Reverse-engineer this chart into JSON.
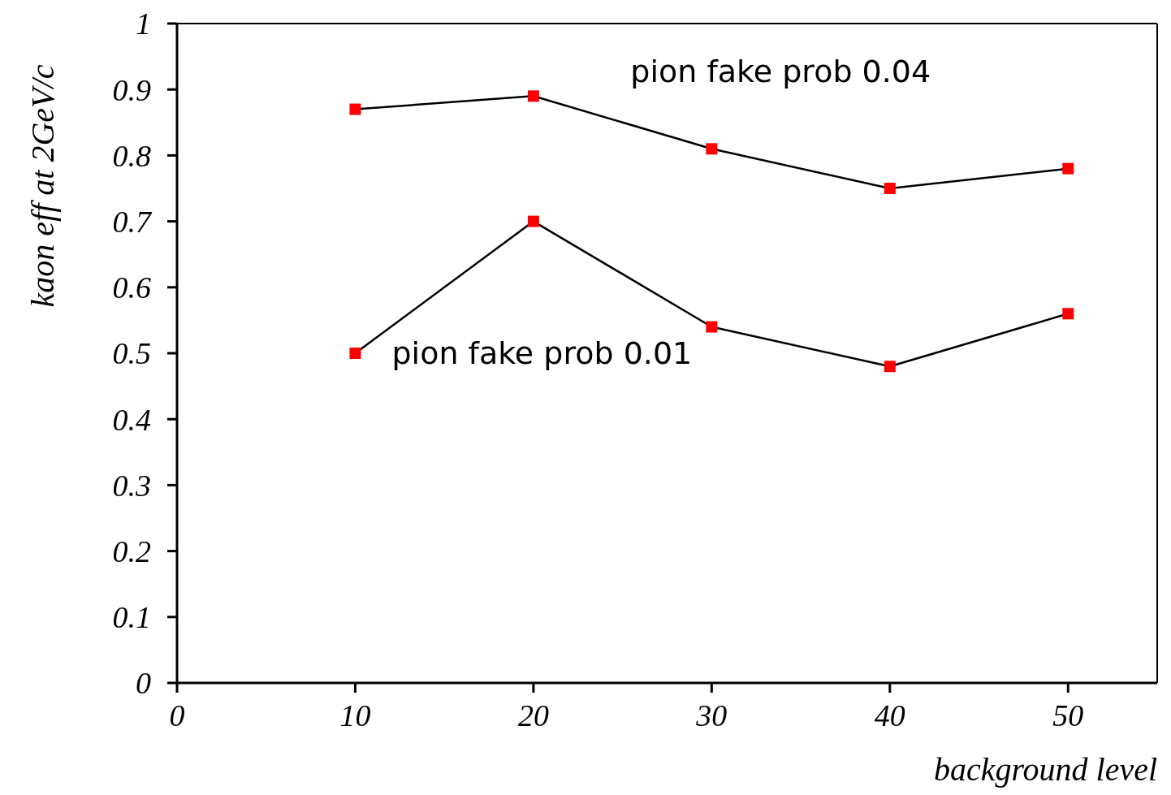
{
  "chart_data": {
    "type": "line",
    "xlabel": "background level",
    "ylabel": "kaon eff at 2GeV/c",
    "x": [
      10,
      20,
      30,
      40,
      50
    ],
    "series": [
      {
        "name": "pion fake prob 0.04",
        "color": "#000000",
        "colors": [
          "#ff0000",
          "#ff0000",
          "#ff0000",
          "#ff0000",
          "#ff0000"
        ],
        "values": [
          0.87,
          0.89,
          0.81,
          0.75,
          0.78
        ]
      },
      {
        "name": "pion fake prob 0.01",
        "color": "#000000",
        "colors": [
          "#ff0000",
          "#ff0000",
          "#ff0000",
          "#ff0000",
          "#ff0000"
        ],
        "values": [
          0.5,
          0.7,
          0.54,
          0.48,
          0.56
        ]
      }
    ],
    "xlim": [
      0,
      55
    ],
    "xticks": [
      0,
      10,
      20,
      30,
      40,
      50
    ],
    "ylim": [
      0,
      1
    ],
    "yticks": [
      0,
      0.1,
      0.2,
      0.3,
      0.4,
      0.5,
      0.6,
      0.7,
      0.8,
      0.9,
      1
    ],
    "marker": "square",
    "line_style": "solid",
    "grid": false,
    "legend": false
  }
}
